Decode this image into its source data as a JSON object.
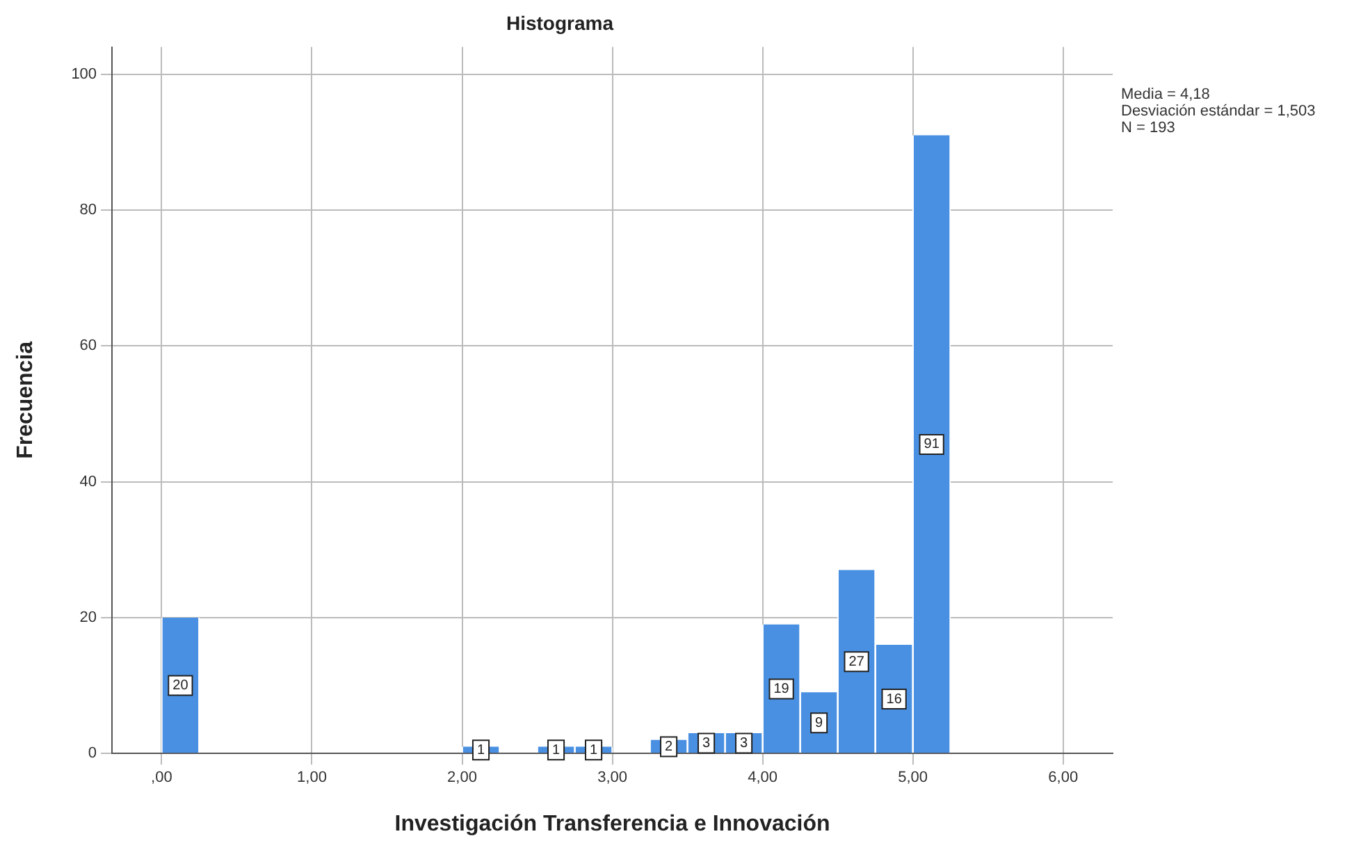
{
  "chart_data": {
    "type": "histogram",
    "title": "Histograma",
    "xlabel": "Investigación Transferencia e Innovación",
    "ylabel": "Frecuencia",
    "bins": [
      0,
      0.25,
      0.5,
      0.75,
      1,
      1.25,
      1.5,
      1.75,
      2,
      2.25,
      2.5,
      2.75,
      3,
      3.25,
      3.5,
      3.75,
      4,
      4.25,
      4.5,
      4.75,
      5,
      5.25
    ],
    "values": [
      20,
      0,
      0,
      0,
      0,
      0,
      0,
      0,
      1,
      0,
      1,
      1,
      0,
      2,
      3,
      3,
      19,
      9,
      27,
      16,
      91
    ],
    "value_labels": [
      "20",
      null,
      null,
      null,
      null,
      null,
      null,
      null,
      "1",
      null,
      "1",
      "1",
      null,
      "2",
      "3",
      "3",
      "19",
      "9",
      "27",
      "16",
      "91"
    ],
    "color": "#4a90e2",
    "xlim": [
      -0.33,
      6.33
    ],
    "xticks": [
      {
        "value": 0,
        "label": ",00"
      },
      {
        "value": 1,
        "label": "1,00"
      },
      {
        "value": 2,
        "label": "2,00"
      },
      {
        "value": 3,
        "label": "3,00"
      },
      {
        "value": 4,
        "label": "4,00"
      },
      {
        "value": 5,
        "label": "5,00"
      },
      {
        "value": 6,
        "label": "6,00"
      }
    ],
    "ylim": [
      0,
      104
    ],
    "yticks": [
      0,
      20,
      40,
      60,
      80,
      100
    ],
    "grid": true,
    "annotations": [
      "Media = 4,18\nDesviación estándar = 1,503\nN = 193"
    ]
  }
}
